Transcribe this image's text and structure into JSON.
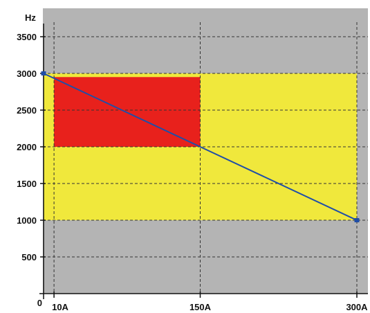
{
  "colors": {
    "plot_background": "#b4b4b4",
    "yellow_region": "#f0e83c",
    "red_region": "#e8211c",
    "line": "#1f4ea8",
    "marker": "#1f4ea8",
    "grid": "#333333",
    "axis": "#111111"
  },
  "chart_data": {
    "type": "line",
    "title": "",
    "xlabel": "",
    "ylabel": "Hz",
    "origin_label": "0",
    "x_tick_labels": [
      {
        "value": 10,
        "label": "10A"
      },
      {
        "value": 150,
        "label": "150A"
      },
      {
        "value": 300,
        "label": "300A"
      }
    ],
    "y_tick_labels": [
      {
        "value": 500,
        "label": "500"
      },
      {
        "value": 1000,
        "label": "1000"
      },
      {
        "value": 1500,
        "label": "1500"
      },
      {
        "value": 2000,
        "label": "2000"
      },
      {
        "value": 2500,
        "label": "2500"
      },
      {
        "value": 3000,
        "label": "3000"
      },
      {
        "value": 3500,
        "label": "3500"
      }
    ],
    "xlim": [
      0,
      300
    ],
    "ylim": [
      0,
      3700
    ],
    "grid": true,
    "regions": [
      {
        "name": "yellow",
        "x": [
          0,
          300
        ],
        "y": [
          1000,
          3000
        ],
        "color": "#f0e83c"
      },
      {
        "name": "red",
        "x": [
          10,
          150
        ],
        "y": [
          2000,
          2950
        ],
        "color": "#e8211c"
      }
    ],
    "series": [
      {
        "x": [
          0,
          150,
          300
        ],
        "y": [
          3000,
          2000,
          1000
        ],
        "endpoint_markers": [
          {
            "x": 0,
            "y": 3000
          },
          {
            "x": 300,
            "y": 1000
          }
        ]
      }
    ]
  }
}
